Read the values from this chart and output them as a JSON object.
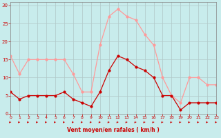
{
  "hours": [
    0,
    1,
    2,
    3,
    4,
    5,
    6,
    7,
    8,
    9,
    10,
    11,
    12,
    13,
    14,
    15,
    16,
    17,
    18,
    19,
    20,
    21,
    22,
    23
  ],
  "wind_mean": [
    6,
    4,
    5,
    5,
    5,
    5,
    6,
    4,
    3,
    2,
    6,
    12,
    16,
    15,
    13,
    12,
    10,
    5,
    5,
    1,
    3,
    3,
    3,
    3
  ],
  "wind_gust": [
    16,
    11,
    15,
    15,
    15,
    15,
    15,
    11,
    6,
    6,
    19,
    27,
    29,
    27,
    26,
    22,
    19,
    10,
    5,
    3,
    10,
    10,
    8,
    8
  ],
  "mean_color": "#cc0000",
  "gust_color": "#ff9999",
  "bg_color": "#c8ecec",
  "grid_color": "#b0c8c8",
  "xlabel": "Vent moyen/en rafales ( km/h )",
  "ylabel_ticks": [
    0,
    5,
    10,
    15,
    20,
    25,
    30
  ],
  "ylim": [
    0,
    31
  ],
  "xlim": [
    0,
    23
  ],
  "arrow_color": "#cc0000",
  "spine_color": "#888888"
}
